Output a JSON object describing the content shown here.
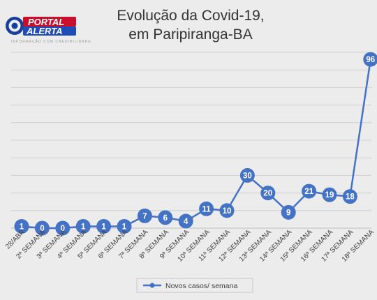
{
  "logo": {
    "line1": "PORTAL",
    "line2": "ALERTA",
    "tagline": "INFORMAÇÃO COM CREDIBILIDADE",
    "colors": {
      "ring": "#1a3f9a",
      "red": "#c8102e",
      "blue": "#1f4db5"
    }
  },
  "chart_data": {
    "type": "line",
    "title": [
      "Evolução da Covid-19,",
      "em Paripiranga-BA"
    ],
    "categories": [
      "28/ABR",
      "2ª SEMANA",
      "3ª SEMANA",
      "4ª SEMANA",
      "5ª SEMANA",
      "6ª SEMANA",
      "7ª SEMANA",
      "8ª SEMANA",
      "9ª SEMANA",
      "10ª SEMANA",
      "11ª SEMANA",
      "12ª SEMANA",
      "13ª SEMANA",
      "14ª SEMANA",
      "15ª SEMANA",
      "16ª SEMANA",
      "17ª SEMANA",
      "18ª SEMANA"
    ],
    "series": [
      {
        "name": "Novos casos/ semana",
        "values": [
          1,
          0,
          0,
          1,
          1,
          1,
          7,
          6,
          4,
          11,
          10,
          30,
          20,
          9,
          21,
          19,
          18,
          96
        ]
      }
    ],
    "ylim": [
      0,
      100
    ],
    "gridlines": true,
    "legend_position": "bottom",
    "colors": {
      "series": "#4472c4",
      "grid": "#d0d0d0",
      "background": "#ececec"
    }
  }
}
